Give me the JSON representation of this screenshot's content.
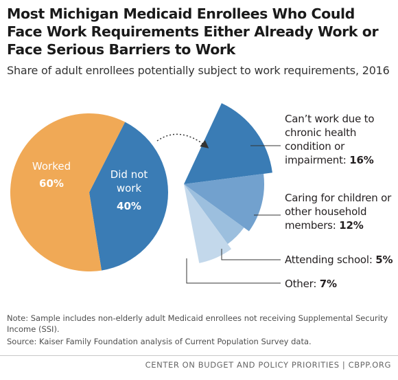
{
  "title_lines": [
    "Most Michigan Medicaid Enrollees Who Could",
    "Face Work Requirements Either Already Work or",
    "Face Serious Barriers to Work"
  ],
  "subtitle": "Share of adult enrollees potentially subject to work requirements, 2016",
  "chart_data": [
    {
      "type": "pie",
      "slices": [
        {
          "label": "Worked",
          "value": 60,
          "value_text": "60%",
          "color": "#f0a956"
        },
        {
          "label_lines": [
            "Did not",
            "work"
          ],
          "value": 40,
          "value_text": "40%",
          "color": "#3a7cb5"
        }
      ]
    },
    {
      "type": "pie",
      "partial": true,
      "slices": [
        {
          "label_lines": [
            "Can’t work due to",
            "chronic health",
            "condition or",
            "impairment: "
          ],
          "value": 16,
          "value_text": "16%",
          "color": "#3a7cb5"
        },
        {
          "label_lines": [
            "Caring for children or",
            "other household",
            "members: "
          ],
          "value": 12,
          "value_text": "12%",
          "color": "#72a1ce"
        },
        {
          "label_lines": [
            "Attending school: "
          ],
          "value": 5,
          "value_text": "5%",
          "color": "#9cbfde"
        },
        {
          "label_lines": [
            "Other: "
          ],
          "value": 7,
          "value_text": "7%",
          "color": "#c3d8eb"
        }
      ]
    }
  ],
  "note": "Note: Sample includes non-elderly adult Medicaid enrollees not receiving Supplemental Security Income (SSI).",
  "source": "Source: Kaiser Family Foundation analysis of Current Population Survey data.",
  "footer": "CENTER ON BUDGET AND POLICY PRIORITIES | CBPP.ORG"
}
